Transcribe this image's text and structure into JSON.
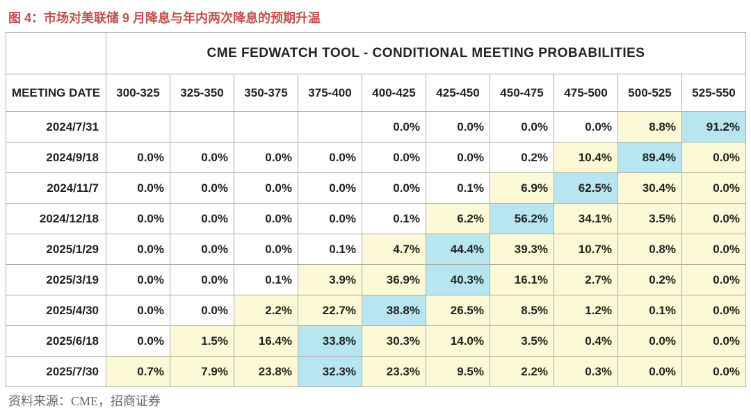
{
  "title": "图 4：市场对美联储 9 月降息与年内两次降息的预期升温",
  "table_header": "CME FEDWATCH TOOL - CONDITIONAL MEETING PROBABILITIES",
  "meeting_date_label": "MEETING DATE",
  "source": "资料来源：CME，招商证券",
  "columns": [
    "300-325",
    "325-350",
    "350-375",
    "375-400",
    "400-425",
    "425-450",
    "450-475",
    "475-500",
    "500-525",
    "525-550"
  ],
  "colors": {
    "background": "#ffffff",
    "title_color": "#c0504d",
    "border_color": "#b0aca4",
    "highlight_blue": "#b7e6f0",
    "highlight_yellow": "#fbf9d6",
    "text": "#222222",
    "source_text": "#666666"
  },
  "rows": [
    {
      "date": "2024/7/31",
      "cells": [
        {
          "v": "",
          "bg": ""
        },
        {
          "v": "",
          "bg": ""
        },
        {
          "v": "",
          "bg": ""
        },
        {
          "v": "",
          "bg": ""
        },
        {
          "v": "0.0%",
          "bg": ""
        },
        {
          "v": "0.0%",
          "bg": ""
        },
        {
          "v": "0.0%",
          "bg": ""
        },
        {
          "v": "0.0%",
          "bg": ""
        },
        {
          "v": "8.8%",
          "bg": "#fbf9d6"
        },
        {
          "v": "91.2%",
          "bg": "#b7e6f0"
        }
      ]
    },
    {
      "date": "2024/9/18",
      "cells": [
        {
          "v": "0.0%",
          "bg": ""
        },
        {
          "v": "0.0%",
          "bg": ""
        },
        {
          "v": "0.0%",
          "bg": ""
        },
        {
          "v": "0.0%",
          "bg": ""
        },
        {
          "v": "0.0%",
          "bg": ""
        },
        {
          "v": "0.0%",
          "bg": ""
        },
        {
          "v": "0.2%",
          "bg": ""
        },
        {
          "v": "10.4%",
          "bg": "#fbf9d6"
        },
        {
          "v": "89.4%",
          "bg": "#b7e6f0"
        },
        {
          "v": "0.0%",
          "bg": "#fbf9d6"
        }
      ]
    },
    {
      "date": "2024/11/7",
      "cells": [
        {
          "v": "0.0%",
          "bg": ""
        },
        {
          "v": "0.0%",
          "bg": ""
        },
        {
          "v": "0.0%",
          "bg": ""
        },
        {
          "v": "0.0%",
          "bg": ""
        },
        {
          "v": "0.0%",
          "bg": ""
        },
        {
          "v": "0.1%",
          "bg": ""
        },
        {
          "v": "6.9%",
          "bg": "#fbf9d6"
        },
        {
          "v": "62.5%",
          "bg": "#b7e6f0"
        },
        {
          "v": "30.4%",
          "bg": "#fbf9d6"
        },
        {
          "v": "0.0%",
          "bg": "#fbf9d6"
        }
      ]
    },
    {
      "date": "2024/12/18",
      "cells": [
        {
          "v": "0.0%",
          "bg": ""
        },
        {
          "v": "0.0%",
          "bg": ""
        },
        {
          "v": "0.0%",
          "bg": ""
        },
        {
          "v": "0.0%",
          "bg": ""
        },
        {
          "v": "0.1%",
          "bg": ""
        },
        {
          "v": "6.2%",
          "bg": "#fbf9d6"
        },
        {
          "v": "56.2%",
          "bg": "#b7e6f0"
        },
        {
          "v": "34.1%",
          "bg": "#fbf9d6"
        },
        {
          "v": "3.5%",
          "bg": "#fbf9d6"
        },
        {
          "v": "0.0%",
          "bg": "#fbf9d6"
        }
      ]
    },
    {
      "date": "2025/1/29",
      "cells": [
        {
          "v": "0.0%",
          "bg": ""
        },
        {
          "v": "0.0%",
          "bg": ""
        },
        {
          "v": "0.0%",
          "bg": ""
        },
        {
          "v": "0.1%",
          "bg": ""
        },
        {
          "v": "4.7%",
          "bg": "#fbf9d6"
        },
        {
          "v": "44.4%",
          "bg": "#b7e6f0"
        },
        {
          "v": "39.3%",
          "bg": "#fbf9d6"
        },
        {
          "v": "10.7%",
          "bg": "#fbf9d6"
        },
        {
          "v": "0.8%",
          "bg": "#fbf9d6"
        },
        {
          "v": "0.0%",
          "bg": "#fbf9d6"
        }
      ]
    },
    {
      "date": "2025/3/19",
      "cells": [
        {
          "v": "0.0%",
          "bg": ""
        },
        {
          "v": "0.0%",
          "bg": ""
        },
        {
          "v": "0.1%",
          "bg": ""
        },
        {
          "v": "3.9%",
          "bg": "#fbf9d6"
        },
        {
          "v": "36.9%",
          "bg": "#fbf9d6"
        },
        {
          "v": "40.3%",
          "bg": "#b7e6f0"
        },
        {
          "v": "16.1%",
          "bg": "#fbf9d6"
        },
        {
          "v": "2.7%",
          "bg": "#fbf9d6"
        },
        {
          "v": "0.2%",
          "bg": "#fbf9d6"
        },
        {
          "v": "0.0%",
          "bg": "#fbf9d6"
        }
      ]
    },
    {
      "date": "2025/4/30",
      "cells": [
        {
          "v": "0.0%",
          "bg": ""
        },
        {
          "v": "0.0%",
          "bg": ""
        },
        {
          "v": "2.2%",
          "bg": "#fbf9d6"
        },
        {
          "v": "22.7%",
          "bg": "#fbf9d6"
        },
        {
          "v": "38.8%",
          "bg": "#b7e6f0"
        },
        {
          "v": "26.5%",
          "bg": "#fbf9d6"
        },
        {
          "v": "8.5%",
          "bg": "#fbf9d6"
        },
        {
          "v": "1.2%",
          "bg": "#fbf9d6"
        },
        {
          "v": "0.1%",
          "bg": "#fbf9d6"
        },
        {
          "v": "0.0%",
          "bg": "#fbf9d6"
        }
      ]
    },
    {
      "date": "2025/6/18",
      "cells": [
        {
          "v": "0.0%",
          "bg": ""
        },
        {
          "v": "1.5%",
          "bg": "#fbf9d6"
        },
        {
          "v": "16.4%",
          "bg": "#fbf9d6"
        },
        {
          "v": "33.8%",
          "bg": "#b7e6f0"
        },
        {
          "v": "30.3%",
          "bg": "#fbf9d6"
        },
        {
          "v": "14.0%",
          "bg": "#fbf9d6"
        },
        {
          "v": "3.5%",
          "bg": "#fbf9d6"
        },
        {
          "v": "0.4%",
          "bg": "#fbf9d6"
        },
        {
          "v": "0.0%",
          "bg": "#fbf9d6"
        },
        {
          "v": "0.0%",
          "bg": "#fbf9d6"
        }
      ]
    },
    {
      "date": "2025/7/30",
      "cells": [
        {
          "v": "0.7%",
          "bg": "#fbf9d6"
        },
        {
          "v": "7.9%",
          "bg": "#fbf9d6"
        },
        {
          "v": "23.8%",
          "bg": "#fbf9d6"
        },
        {
          "v": "32.3%",
          "bg": "#b7e6f0"
        },
        {
          "v": "23.3%",
          "bg": "#fbf9d6"
        },
        {
          "v": "9.5%",
          "bg": "#fbf9d6"
        },
        {
          "v": "2.2%",
          "bg": "#fbf9d6"
        },
        {
          "v": "0.3%",
          "bg": "#fbf9d6"
        },
        {
          "v": "0.0%",
          "bg": "#fbf9d6"
        },
        {
          "v": "0.0%",
          "bg": "#fbf9d6"
        }
      ]
    }
  ]
}
